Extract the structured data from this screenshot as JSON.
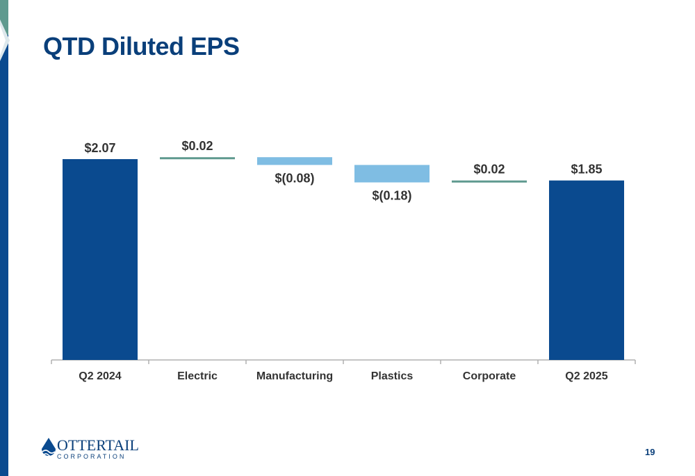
{
  "slide": {
    "title": "QTD Diluted EPS",
    "page_number": "19"
  },
  "logo": {
    "name": "OTTERTAIL",
    "sub": "CORPORATION",
    "icon": "drop-wave-icon"
  },
  "colors": {
    "total": "#0a4a8f",
    "increase": "#5f9a8f",
    "decrease": "#7fbde3",
    "axis": "#b0b0b0",
    "label": "#333333",
    "title": "#0a3f7a"
  },
  "chart_data": {
    "type": "bar",
    "subtype": "waterfall",
    "categories": [
      "Q2 2024",
      "Electric",
      "Manufacturing",
      "Plastics",
      "Corporate",
      "Q2 2025"
    ],
    "values": [
      2.07,
      0.02,
      -0.08,
      -0.18,
      0.02,
      1.85
    ],
    "kinds": [
      "total",
      "change",
      "change",
      "change",
      "change",
      "total"
    ],
    "data_labels": [
      "$2.07",
      "$0.02",
      "$(0.08)",
      "$(0.18)",
      "$0.02",
      "$1.85"
    ],
    "title": "",
    "xlabel": "",
    "ylabel": "",
    "ylim": [
      0,
      2.07
    ],
    "grid": false,
    "legend": "none"
  }
}
